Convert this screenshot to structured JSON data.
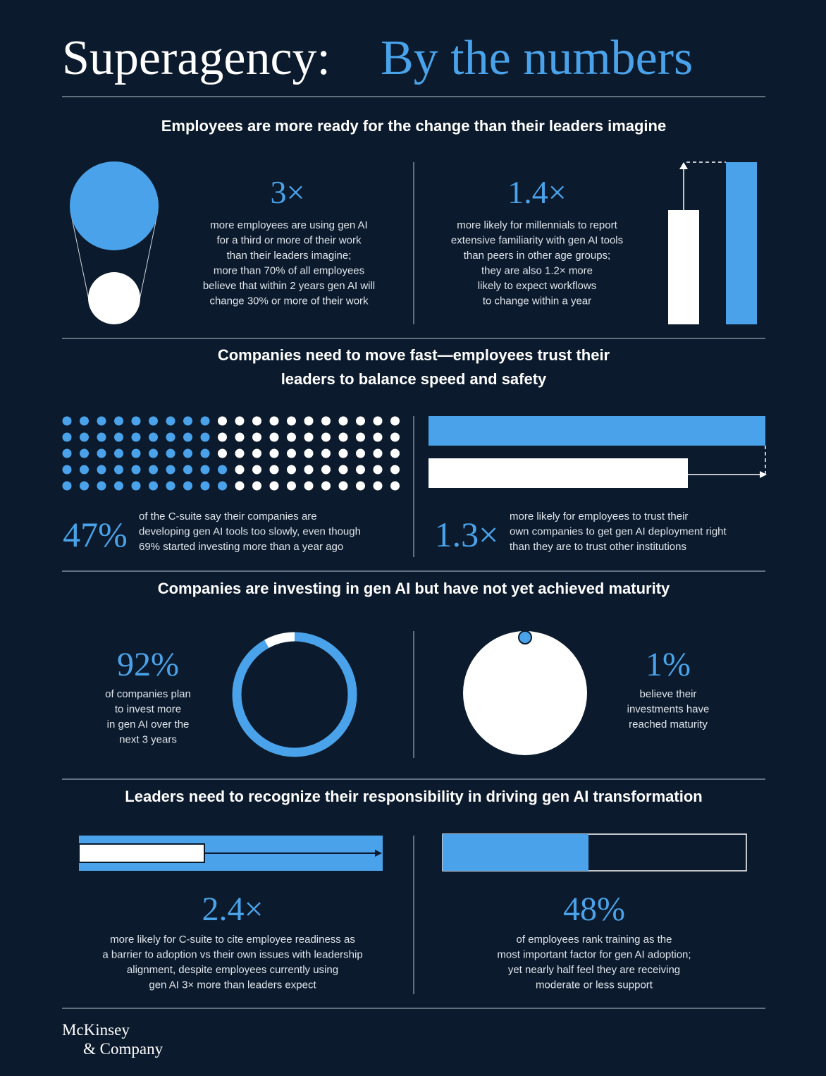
{
  "header": {
    "title_lead": "Superagency:",
    "title_accent": "By the numbers"
  },
  "sections": [
    {
      "heading": [
        "Employees are more ready for the change than their leaders imagine"
      ],
      "stats": [
        {
          "figure": "3×",
          "text": [
            "more employees are using gen AI",
            "for a third or more of their work",
            "than their leaders imagine;",
            "more than 70% of all employees",
            "believe that within 2 years gen AI will",
            "change 30% or more of their work"
          ]
        },
        {
          "figure": "1.4×",
          "text": [
            "more likely for millennials to report",
            "extensive familiarity with gen AI tools",
            "than peers in other age groups;",
            "they are also 1.2× more",
            "likely to expect workflows",
            "to change within a year"
          ]
        }
      ]
    },
    {
      "heading": [
        "Companies need to move fast—employees trust their",
        "leaders to balance speed and safety"
      ],
      "stats": [
        {
          "figure": "47%",
          "text": [
            "of the C-suite say their companies are",
            "developing gen AI tools too slowly, even though",
            "69% started investing more than a year ago"
          ]
        },
        {
          "figure": "1.3×",
          "text": [
            "more likely for employees to trust their",
            "own companies to get gen AI deployment right",
            "than they are to trust other institutions"
          ]
        }
      ]
    },
    {
      "heading": [
        "Companies are investing in gen AI but have not yet achieved maturity"
      ],
      "stats": [
        {
          "figure": "92%",
          "text": [
            "of companies plan",
            "to invest more",
            "in gen AI over the",
            "next 3 years"
          ]
        },
        {
          "figure": "1%",
          "text": [
            "believe their",
            "investments have",
            "reached maturity"
          ]
        }
      ]
    },
    {
      "heading": [
        "Leaders need to recognize their responsibility in driving gen AI transformation"
      ],
      "stats": [
        {
          "figure": "2.4×",
          "text": [
            "more likely for C-suite to cite employee readiness as",
            "a barrier to adoption vs their own issues with leadership",
            "alignment, despite employees currently using",
            "gen AI 3× more than leaders expect"
          ]
        },
        {
          "figure": "48%",
          "text": [
            "of employees rank training as the",
            "most important factor for gen AI adoption;",
            "yet nearly half feel they are receiving",
            "moderate or less support"
          ]
        }
      ]
    }
  ],
  "footer": {
    "logo": [
      "McKinsey",
      "& Company"
    ]
  }
}
